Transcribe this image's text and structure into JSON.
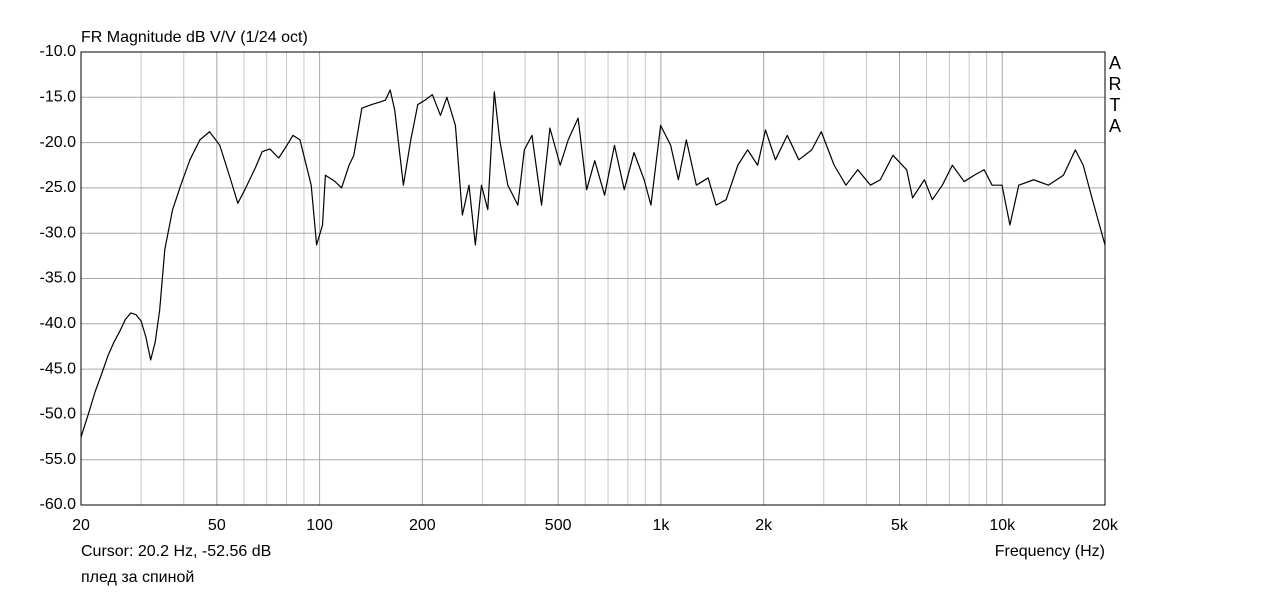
{
  "chart_data": {
    "type": "line",
    "title": "FR Magnitude dB V/V (1/24 oct)",
    "watermark": "ARTA",
    "xlabel": "Frequency (Hz)",
    "cursor": "Cursor: 20.2 Hz, -52.56 dB",
    "xscale": "log",
    "grid": true,
    "xlim": [
      20,
      20000
    ],
    "xticks": [
      20,
      50,
      100,
      200,
      500,
      {
        "value": 1000,
        "label": "1k"
      },
      {
        "value": 2000,
        "label": "2k"
      },
      {
        "value": 5000,
        "label": "5k"
      },
      {
        "value": 10000,
        "label": "10k"
      },
      {
        "value": 20000,
        "label": "20k"
      }
    ],
    "xminor_ticks": [
      30,
      40,
      60,
      70,
      80,
      90,
      300,
      400,
      600,
      700,
      800,
      900,
      3000,
      4000,
      6000,
      7000,
      8000,
      9000
    ],
    "ylim": [
      -60,
      -10
    ],
    "yticks": [
      {
        "value": -10,
        "label": "-10.0"
      },
      {
        "value": -15,
        "label": "-15.0"
      },
      {
        "value": -20,
        "label": "-20.0"
      },
      {
        "value": -25,
        "label": "-25.0"
      },
      {
        "value": -30,
        "label": "-30.0"
      },
      {
        "value": -35,
        "label": "-35.0"
      },
      {
        "value": -40,
        "label": "-40.0"
      },
      {
        "value": -45,
        "label": "-45.0"
      },
      {
        "value": -50,
        "label": "-50.0"
      },
      {
        "value": -55,
        "label": "-55.0"
      },
      {
        "value": -60,
        "label": "-60.0"
      }
    ],
    "x": [
      20,
      21,
      22,
      23,
      24,
      25,
      26,
      27,
      28,
      29,
      30,
      31,
      32,
      33,
      34,
      35.2,
      37.1,
      39.2,
      41.7,
      44.6,
      47.6,
      51,
      54.9,
      57.6,
      60.4,
      64.8,
      67.9,
      71.5,
      75.9,
      79.3,
      83.6,
      87.6,
      94.5,
      98,
      102,
      104,
      111,
      116,
      122,
      126,
      133,
      142,
      151,
      156,
      161,
      166,
      176,
      185,
      194,
      204,
      214,
      226,
      236,
      250,
      262,
      274,
      286,
      298,
      311,
      325,
      337,
      356,
      381,
      398,
      419,
      447,
      473,
      507,
      535,
      572,
      606,
      640,
      684,
      731,
      781,
      834,
      893,
      935,
      998,
      1068,
      1125,
      1187,
      1270,
      1375,
      1451,
      1553,
      1680,
      1795,
      1920,
      2025,
      2165,
      2345,
      2535,
      2766,
      2950,
      3218,
      3484,
      3773,
      4109,
      4393,
      4784,
      5249,
      5461,
      5914,
      6239,
      6675,
      7141,
      7735,
      8275,
      8853,
      9335,
      9986,
      10530,
      11180,
      12360,
      13660,
      15110,
      16370,
      17270,
      18220,
      20000
    ],
    "series": [
      {
        "name": "плед за спиной",
        "color": "#000000",
        "values": [
          -52.5,
          -50,
          -47.5,
          -45.5,
          -43.5,
          -42,
          -40.8,
          -39.5,
          -38.8,
          -39,
          -39.7,
          -41.5,
          -44,
          -42,
          -38.5,
          -31.8,
          -27.4,
          -24.7,
          -21.9,
          -19.7,
          -18.8,
          -20.3,
          -24.1,
          -26.7,
          -25.2,
          -22.8,
          -21,
          -20.7,
          -21.7,
          -20.6,
          -19.2,
          -19.7,
          -24.7,
          -31.3,
          -29.1,
          -23.6,
          -24.3,
          -25,
          -22.5,
          -21.4,
          -16.2,
          -15.8,
          -15.5,
          -15.3,
          -14.2,
          -16.4,
          -24.7,
          -19.7,
          -15.8,
          -15.3,
          -14.7,
          -17,
          -15,
          -18.1,
          -28,
          -24.7,
          -31.3,
          -24.7,
          -27.4,
          -14.4,
          -19.7,
          -24.7,
          -26.9,
          -20.8,
          -19.2,
          -26.9,
          -18.4,
          -22.5,
          -19.7,
          -17.3,
          -25.2,
          -22,
          -25.8,
          -20.3,
          -25.2,
          -21.1,
          -24.1,
          -26.9,
          -18.1,
          -20.3,
          -24.1,
          -19.7,
          -24.7,
          -23.9,
          -26.9,
          -26.3,
          -22.5,
          -20.8,
          -22.5,
          -18.6,
          -21.9,
          -19.2,
          -21.9,
          -20.8,
          -18.8,
          -22.5,
          -24.7,
          -23,
          -24.7,
          -24.1,
          -21.4,
          -23,
          -26.1,
          -24.1,
          -26.3,
          -24.7,
          -22.5,
          -24.3,
          -23.6,
          -23,
          -24.7,
          -24.7,
          -29.1,
          -24.7,
          -24.1,
          -24.7,
          -23.6,
          -20.8,
          -22.5,
          -25.8,
          -31.3
        ]
      }
    ]
  }
}
